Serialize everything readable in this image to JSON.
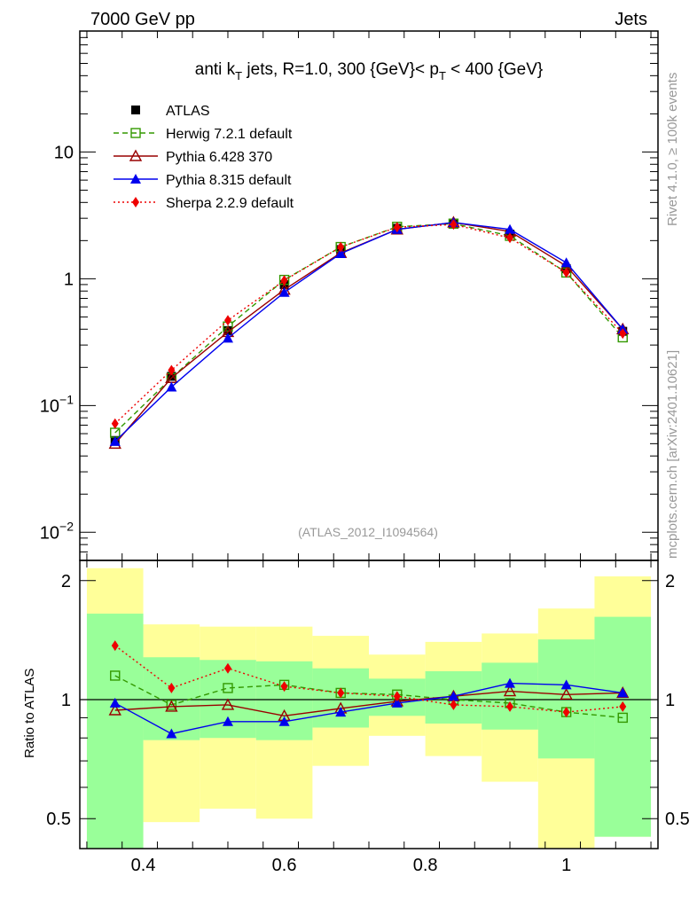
{
  "header": {
    "energy_label": "7000 GeV pp",
    "category_label": "Jets"
  },
  "side_labels": {
    "rivet": "Rivet 4.1.0, ≥ 100k events",
    "mcplots": "mcplots.cern.ch [arXiv:2401.10621]"
  },
  "chart_data": [
    {
      "type": "line",
      "title": "anti k_T jets, R=1.0,  300 {GeV}< p_T < 400 {GeV}",
      "title_parts": {
        "a": "anti k",
        "a_sub": "T",
        "b": " jets, R=1.0,  300 {GeV}< p",
        "b_sub": "T",
        "c": " < 400 {GeV}"
      },
      "analysis_label": "(ATLAS_2012_I1094564)",
      "yscale": "log",
      "xlim": [
        0.31,
        1.13
      ],
      "ylim": [
        0.006,
        90
      ],
      "y_ticks": [
        {
          "base": "10",
          "exp": "−2",
          "value": 0.01
        },
        {
          "base": "10",
          "exp": "−1",
          "value": 0.1
        },
        {
          "base": "1",
          "exp": "",
          "value": 1
        },
        {
          "base": "10",
          "exp": "",
          "value": 10
        }
      ],
      "x": [
        0.36,
        0.44,
        0.52,
        0.6,
        0.68,
        0.76,
        0.84,
        0.92,
        1.0,
        1.08
      ],
      "legend_position": "top-left",
      "series": [
        {
          "name": "ATLAS",
          "color": "#000000",
          "marker": "square-filled",
          "line": "none",
          "values": [
            0.053,
            0.17,
            0.39,
            0.9,
            1.7,
            2.5,
            2.75,
            2.25,
            1.2,
            0.385
          ]
        },
        {
          "name": "Herwig 7.2.1 default",
          "color": "#339900",
          "marker": "square-open",
          "line": "dashed",
          "values": [
            0.061,
            0.165,
            0.42,
            0.98,
            1.78,
            2.57,
            2.72,
            2.18,
            1.12,
            0.345
          ]
        },
        {
          "name": "Pythia 6.428 370",
          "color": "#990000",
          "marker": "triangle-open",
          "line": "solid",
          "values": [
            0.05,
            0.165,
            0.38,
            0.82,
            1.6,
            2.45,
            2.78,
            2.36,
            1.26,
            0.4
          ]
        },
        {
          "name": "Pythia 8.315 default",
          "color": "#0000ee",
          "marker": "triangle-filled",
          "line": "solid",
          "values": [
            0.052,
            0.14,
            0.34,
            0.78,
            1.58,
            2.45,
            2.78,
            2.45,
            1.34,
            0.4
          ]
        },
        {
          "name": "Sherpa 2.2.9 default",
          "color": "#ee0000",
          "marker": "diamond-filled",
          "line": "dotted",
          "values": [
            0.072,
            0.19,
            0.47,
            0.97,
            1.78,
            2.55,
            2.68,
            2.1,
            1.12,
            0.37
          ]
        }
      ]
    },
    {
      "type": "line",
      "ylabel": "Ratio to ATLAS",
      "xlim": [
        0.31,
        1.13
      ],
      "ylim": [
        0.42,
        2.25
      ],
      "x_ticks": [
        "0.4",
        "0.6",
        "0.8",
        "1"
      ],
      "x_tick_values": [
        0.4,
        0.6,
        0.8,
        1.0
      ],
      "y_ticks": [
        "0.5",
        "1",
        "2"
      ],
      "y_tick_values": [
        0.5,
        1,
        2
      ],
      "x": [
        0.36,
        0.44,
        0.52,
        0.6,
        0.68,
        0.76,
        0.84,
        0.92,
        1.0,
        1.08
      ],
      "bands": {
        "bin_edges": [
          0.32,
          0.4,
          0.48,
          0.56,
          0.64,
          0.72,
          0.8,
          0.88,
          0.96,
          1.04,
          1.12
        ],
        "yellow": [
          [
            0.2,
            2.15
          ],
          [
            0.49,
            1.55
          ],
          [
            0.53,
            1.53
          ],
          [
            0.5,
            1.53
          ],
          [
            0.68,
            1.45
          ],
          [
            0.81,
            1.3
          ],
          [
            0.72,
            1.4
          ],
          [
            0.62,
            1.47
          ],
          [
            0.37,
            1.7
          ],
          [
            0.45,
            2.05
          ]
        ],
        "green": [
          [
            0.2,
            1.65
          ],
          [
            0.79,
            1.28
          ],
          [
            0.8,
            1.26
          ],
          [
            0.79,
            1.25
          ],
          [
            0.85,
            1.2
          ],
          [
            0.91,
            1.13
          ],
          [
            0.87,
            1.18
          ],
          [
            0.84,
            1.24
          ],
          [
            0.71,
            1.42
          ],
          [
            0.45,
            1.62
          ]
        ],
        "yellow_color": "#ffff99",
        "green_color": "#99ff99"
      },
      "series": [
        {
          "name": "Herwig 7.2.1 default",
          "color": "#339900",
          "values": [
            1.15,
            0.97,
            1.07,
            1.09,
            1.04,
            1.03,
            1.0,
            0.98,
            0.93,
            0.9
          ]
        },
        {
          "name": "Pythia 6.428 370",
          "color": "#990000",
          "values": [
            0.94,
            0.96,
            0.97,
            0.91,
            0.95,
            0.99,
            1.02,
            1.05,
            1.03,
            1.04
          ]
        },
        {
          "name": "Pythia 8.315 default",
          "color": "#0000ee",
          "values": [
            0.98,
            0.82,
            0.88,
            0.88,
            0.93,
            0.98,
            1.02,
            1.1,
            1.09,
            1.04
          ]
        },
        {
          "name": "Sherpa 2.2.9 default",
          "color": "#ee0000",
          "values": [
            1.37,
            1.07,
            1.2,
            1.08,
            1.04,
            1.02,
            0.97,
            0.96,
            0.93,
            0.96
          ]
        }
      ]
    }
  ]
}
